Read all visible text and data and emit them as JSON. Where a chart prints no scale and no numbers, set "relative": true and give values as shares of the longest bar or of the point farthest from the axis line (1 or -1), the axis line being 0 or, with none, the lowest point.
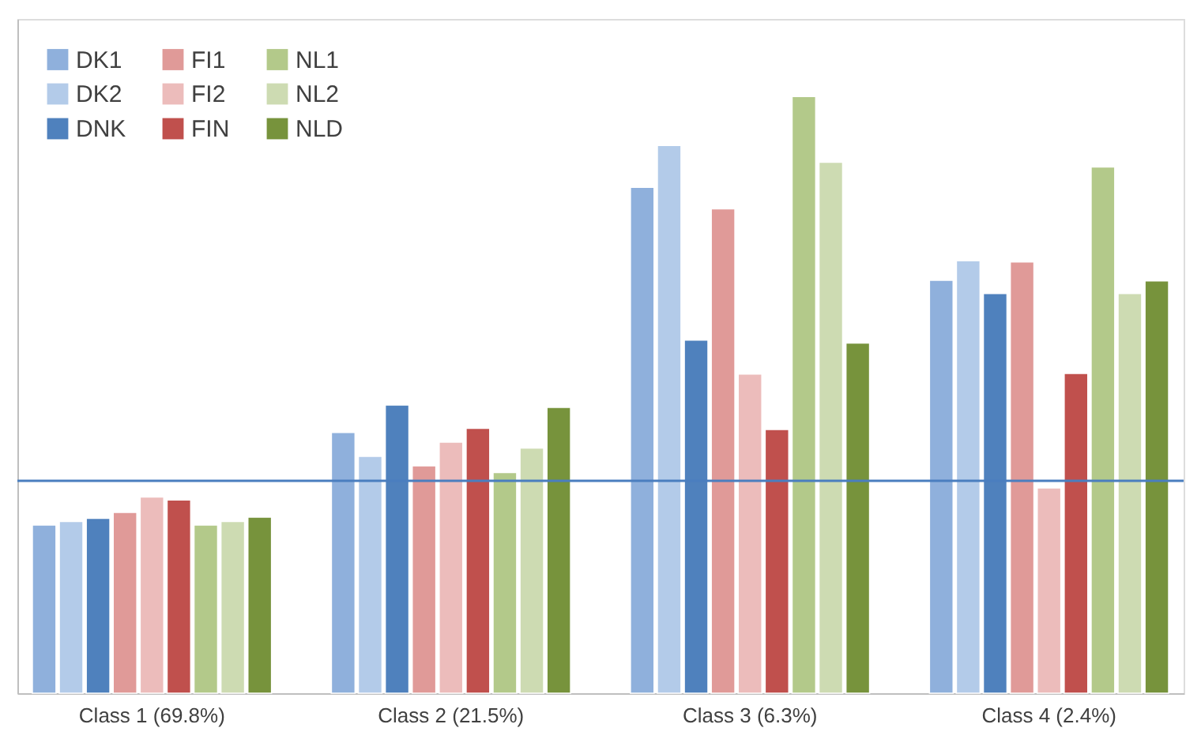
{
  "chart_data": {
    "type": "bar",
    "relative": true,
    "categories": [
      "Class 1 (69.8%)",
      "Class 2 (21.5%)",
      "Class 3 (6.3%)",
      "Class 4 (2.4%)"
    ],
    "series": [
      {
        "name": "DK1",
        "color": "#8fb0dc",
        "values": [
          0.282,
          0.437,
          0.848,
          0.692
        ]
      },
      {
        "name": "DK2",
        "color": "#b3cbe9",
        "values": [
          0.288,
          0.397,
          0.918,
          0.725
        ]
      },
      {
        "name": "DNK",
        "color": "#4f81bd",
        "values": [
          0.293,
          0.483,
          0.592,
          0.67
        ]
      },
      {
        "name": "FI1",
        "color": "#e09a98",
        "values": [
          0.303,
          0.381,
          0.812,
          0.723
        ]
      },
      {
        "name": "FI2",
        "color": "#ecbcbb",
        "values": [
          0.329,
          0.421,
          0.535,
          0.344
        ]
      },
      {
        "name": "FIN",
        "color": "#c0504d",
        "values": [
          0.324,
          0.444,
          0.442,
          0.536
        ]
      },
      {
        "name": "NL1",
        "color": "#b3c98a",
        "values": [
          0.282,
          0.37,
          1.0,
          0.882
        ]
      },
      {
        "name": "NL2",
        "color": "#cddbb2",
        "values": [
          0.288,
          0.411,
          0.89,
          0.67
        ]
      },
      {
        "name": "NLD",
        "color": "#77933c",
        "values": [
          0.295,
          0.479,
          0.587,
          0.691
        ]
      }
    ],
    "ref_lines": [
      {
        "axis": "y",
        "value": 0.356,
        "color": "#4a7ebf"
      }
    ],
    "legend": "top left",
    "grid": false
  }
}
